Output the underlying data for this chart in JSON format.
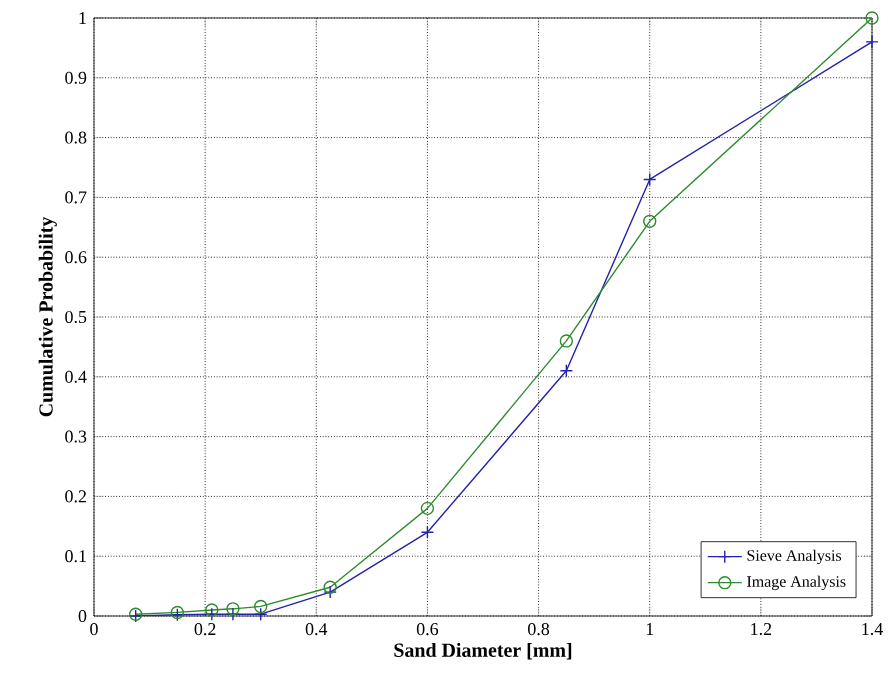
{
  "chart_data": {
    "type": "line",
    "xlabel": "Sand Diameter [mm]",
    "ylabel": "Cumulative Probability",
    "x": [
      0.075,
      0.15,
      0.212,
      0.25,
      0.3,
      0.425,
      0.6,
      0.85,
      1.0,
      1.4
    ],
    "series": [
      {
        "name": "Sieve Analysis",
        "color": "#2222aa",
        "marker": "cross",
        "values": [
          0,
          0.002,
          0.003,
          0.003,
          0.003,
          0.04,
          0.14,
          0.41,
          0.73,
          0.96
        ]
      },
      {
        "name": "Image Analysis",
        "color": "#2e8b2e",
        "marker": "circle",
        "values": [
          0.003,
          0.006,
          0.01,
          0.012,
          0.016,
          0.048,
          0.18,
          0.46,
          0.66,
          1.0
        ]
      }
    ],
    "xlim": [
      0,
      1.4
    ],
    "xticks": [
      0,
      0.2,
      0.4,
      0.6,
      0.8,
      1,
      1.2,
      1.4
    ],
    "ylim": [
      0,
      1
    ],
    "yticks": [
      0,
      0.1,
      0.2,
      0.3,
      0.4,
      0.5,
      0.6,
      0.7,
      0.8,
      0.9,
      1
    ],
    "grid": true,
    "legend": "bottom right",
    "line_style": "solid"
  }
}
